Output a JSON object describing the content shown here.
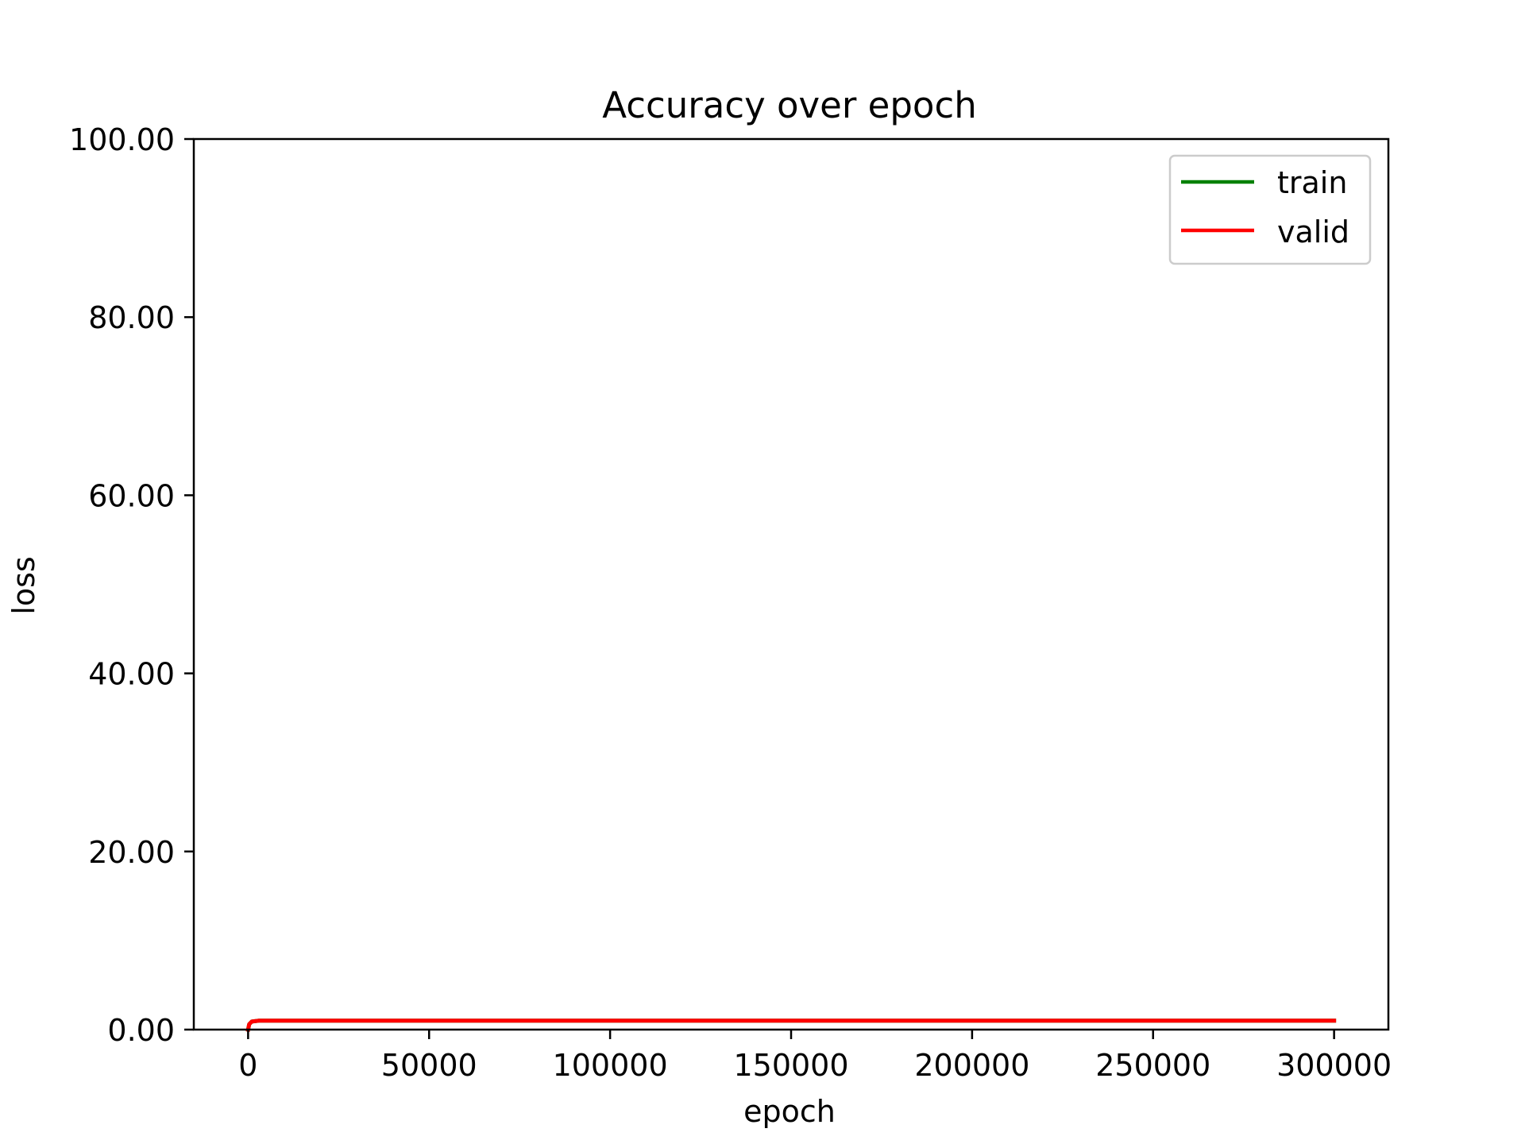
{
  "chart_data": {
    "type": "line",
    "title": "Accuracy over epoch",
    "xlabel": "epoch",
    "ylabel": "loss",
    "xlim": [
      -15000,
      315000
    ],
    "ylim": [
      0,
      100
    ],
    "xticks": [
      0,
      50000,
      100000,
      150000,
      200000,
      250000,
      300000
    ],
    "xtick_labels": [
      "0",
      "50000",
      "100000",
      "150000",
      "200000",
      "250000",
      "300000"
    ],
    "yticks": [
      0,
      20,
      40,
      60,
      80,
      100
    ],
    "ytick_labels": [
      "0.00",
      "20.00",
      "40.00",
      "60.00",
      "80.00",
      "100.00"
    ],
    "grid": false,
    "legend_position": "upper right",
    "series": [
      {
        "name": "train",
        "color": "#008000",
        "x": [
          0,
          300,
          1000,
          3000,
          10000,
          50000,
          100000,
          150000,
          200000,
          250000,
          300000
        ],
        "y": [
          0.0,
          0.6,
          0.9,
          1.0,
          1.0,
          1.0,
          1.0,
          1.0,
          1.0,
          1.0,
          1.0
        ]
      },
      {
        "name": "valid",
        "color": "#ff0000",
        "x": [
          0,
          300,
          1000,
          3000,
          10000,
          50000,
          100000,
          150000,
          200000,
          250000,
          300000
        ],
        "y": [
          0.0,
          0.6,
          0.9,
          1.0,
          1.0,
          1.0,
          1.0,
          1.0,
          1.0,
          1.0,
          1.0
        ]
      }
    ]
  }
}
